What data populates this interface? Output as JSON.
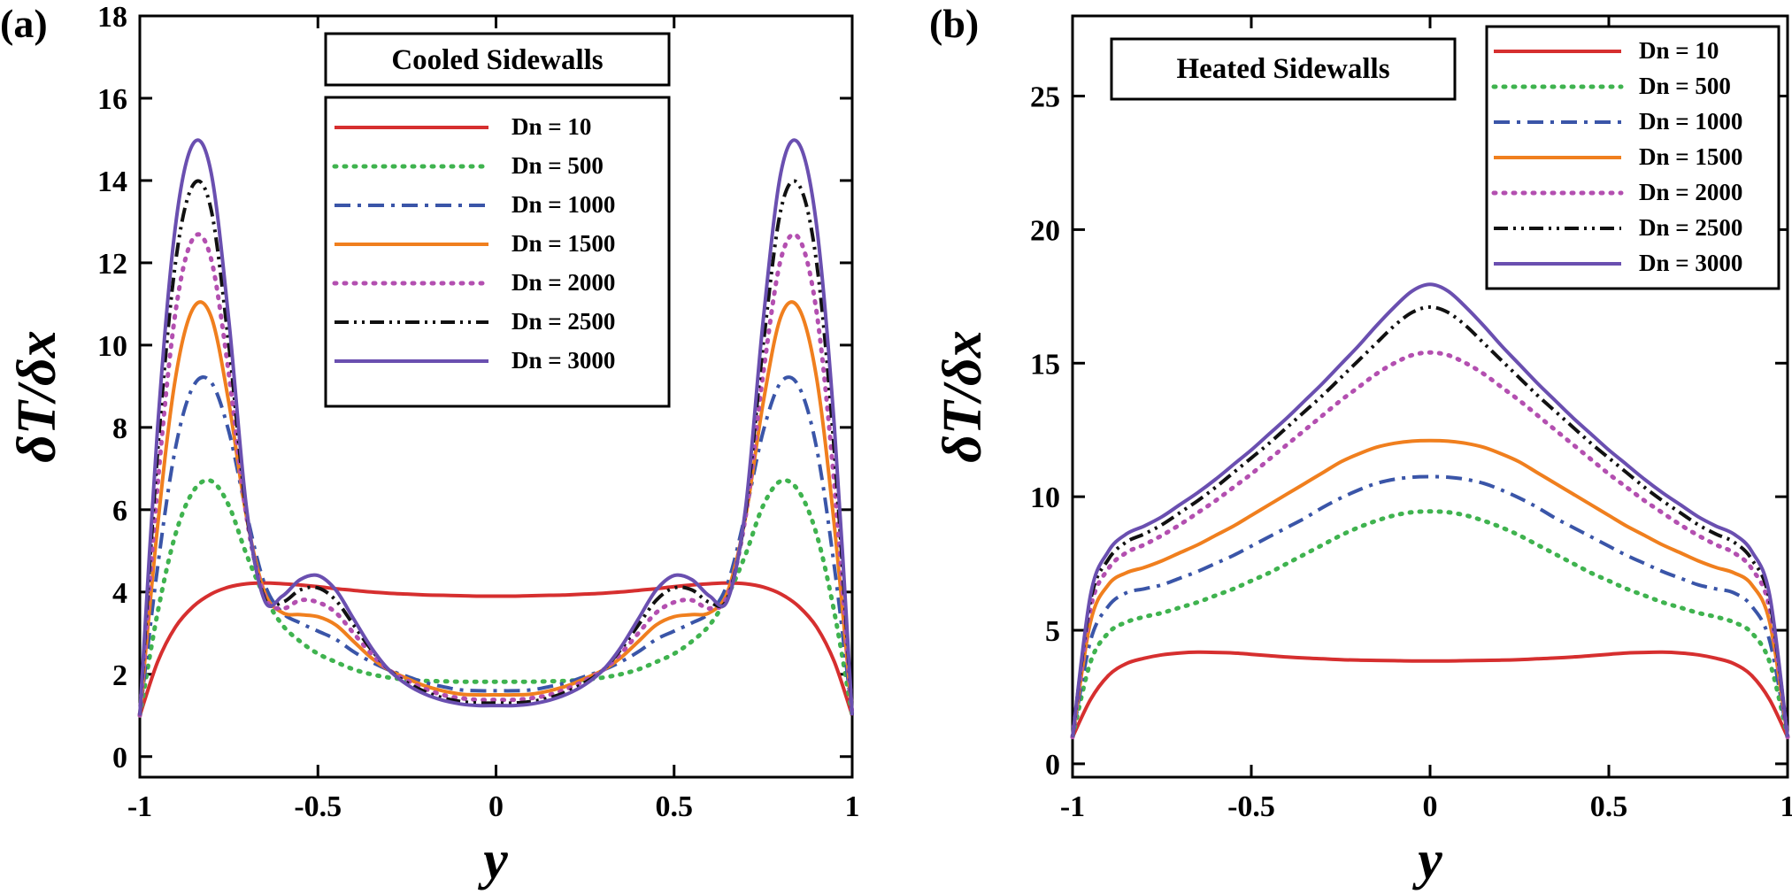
{
  "chart_data": [
    {
      "type": "line",
      "panel_label": "(a)",
      "title": "Cooled Sidewalls",
      "xlabel": "y",
      "ylabel": "δT/δx",
      "xlim": [
        -1,
        1
      ],
      "ylim": [
        -0.5,
        18
      ],
      "xticks": [
        -1,
        -0.5,
        0,
        0.5,
        1
      ],
      "xtick_labels": [
        "-1",
        "-0.5",
        "0",
        "0.5",
        "1"
      ],
      "yticks": [
        0,
        2,
        4,
        6,
        8,
        10,
        12,
        14,
        16,
        18
      ],
      "ytick_labels": [
        "0",
        "2",
        "4",
        "6",
        "8",
        "10",
        "12",
        "14",
        "16",
        "18"
      ],
      "legend_position": "upper-center",
      "x": [
        -1,
        -0.95,
        -0.9,
        -0.85,
        -0.8,
        -0.75,
        -0.7,
        -0.65,
        -0.6,
        -0.55,
        -0.5,
        -0.45,
        -0.4,
        -0.35,
        -0.3,
        -0.25,
        -0.2,
        -0.15,
        -0.1,
        -0.05,
        0,
        0.05,
        0.1,
        0.15,
        0.2,
        0.25,
        0.3,
        0.35,
        0.4,
        0.45,
        0.5,
        0.55,
        0.6,
        0.65,
        0.7,
        0.75,
        0.8,
        0.85,
        0.9,
        0.95,
        1
      ],
      "series": [
        {
          "name": "Dn = 10",
          "values": [
            1.0,
            2.3,
            3.15,
            3.65,
            3.95,
            4.12,
            4.2,
            4.22,
            4.2,
            4.17,
            4.13,
            4.08,
            4.04,
            4.0,
            3.97,
            3.95,
            3.93,
            3.92,
            3.91,
            3.9,
            3.9,
            3.9,
            3.91,
            3.92,
            3.93,
            3.95,
            3.97,
            4.0,
            4.04,
            4.08,
            4.13,
            4.17,
            4.2,
            4.22,
            4.2,
            4.12,
            3.95,
            3.65,
            3.15,
            2.3,
            1.0
          ]
        },
        {
          "name": "Dn = 500",
          "values": [
            1.0,
            3.5,
            5.4,
            6.45,
            6.7,
            6.1,
            4.9,
            3.9,
            3.2,
            2.8,
            2.5,
            2.3,
            2.12,
            2.0,
            1.92,
            1.87,
            1.84,
            1.83,
            1.82,
            1.82,
            1.82,
            1.82,
            1.82,
            1.83,
            1.84,
            1.87,
            1.92,
            2.0,
            2.12,
            2.3,
            2.5,
            2.8,
            3.2,
            3.9,
            4.9,
            6.1,
            6.7,
            6.45,
            5.4,
            3.5,
            1.0
          ]
        },
        {
          "name": "Dn = 1000",
          "values": [
            1.0,
            4.6,
            7.5,
            9.0,
            9.1,
            7.9,
            5.9,
            4.2,
            3.5,
            3.25,
            3.05,
            2.85,
            2.55,
            2.3,
            2.1,
            1.95,
            1.8,
            1.7,
            1.62,
            1.6,
            1.6,
            1.6,
            1.62,
            1.7,
            1.8,
            1.95,
            2.1,
            2.3,
            2.55,
            2.85,
            3.05,
            3.25,
            3.5,
            4.2,
            5.9,
            7.9,
            9.1,
            9.0,
            7.5,
            4.6,
            1.0
          ]
        },
        {
          "name": "Dn = 1500",
          "values": [
            1.0,
            5.6,
            9.2,
            10.9,
            10.7,
            8.6,
            5.8,
            4.0,
            3.5,
            3.45,
            3.4,
            3.2,
            2.8,
            2.4,
            2.1,
            1.9,
            1.72,
            1.6,
            1.52,
            1.5,
            1.5,
            1.5,
            1.52,
            1.6,
            1.72,
            1.9,
            2.1,
            2.4,
            2.8,
            3.2,
            3.4,
            3.45,
            3.5,
            4.0,
            5.8,
            8.6,
            10.7,
            10.9,
            9.2,
            5.6,
            1.0
          ]
        },
        {
          "name": "Dn = 2000",
          "values": [
            1.0,
            6.6,
            10.8,
            12.6,
            12.1,
            9.3,
            5.8,
            3.9,
            3.6,
            3.8,
            3.75,
            3.5,
            3.0,
            2.5,
            2.1,
            1.85,
            1.65,
            1.5,
            1.42,
            1.38,
            1.38,
            1.38,
            1.42,
            1.5,
            1.65,
            1.85,
            2.1,
            2.5,
            3.0,
            3.5,
            3.75,
            3.8,
            3.6,
            3.9,
            5.8,
            9.3,
            12.1,
            12.6,
            10.8,
            6.6,
            1.0
          ]
        },
        {
          "name": "Dn = 2500",
          "values": [
            1.0,
            7.4,
            12.0,
            13.9,
            13.3,
            10.0,
            5.9,
            3.85,
            3.75,
            4.05,
            4.1,
            3.8,
            3.2,
            2.6,
            2.1,
            1.8,
            1.58,
            1.43,
            1.34,
            1.3,
            1.3,
            1.3,
            1.34,
            1.43,
            1.58,
            1.8,
            2.1,
            2.6,
            3.2,
            3.8,
            4.1,
            4.05,
            3.75,
            3.85,
            5.9,
            10.0,
            13.3,
            13.9,
            12.0,
            7.4,
            1.0
          ]
        },
        {
          "name": "Dn = 3000",
          "values": [
            1.0,
            8.0,
            12.9,
            14.9,
            14.2,
            10.6,
            6.0,
            3.8,
            3.9,
            4.3,
            4.4,
            4.05,
            3.35,
            2.65,
            2.1,
            1.75,
            1.52,
            1.37,
            1.28,
            1.24,
            1.24,
            1.24,
            1.28,
            1.37,
            1.52,
            1.75,
            2.1,
            2.65,
            3.35,
            4.05,
            4.4,
            4.3,
            3.9,
            3.8,
            6.0,
            10.6,
            14.2,
            14.9,
            12.9,
            8.0,
            1.0
          ]
        }
      ]
    },
    {
      "type": "line",
      "panel_label": "(b)",
      "title": "Heated Sidewalls",
      "xlabel": "y",
      "ylabel": "δT/δx",
      "xlim": [
        -1,
        1
      ],
      "ylim": [
        -0.5,
        28
      ],
      "xticks": [
        -1,
        -0.5,
        0,
        0.5,
        1
      ],
      "xtick_labels": [
        "-1",
        "-0.5",
        "0",
        "0.5",
        "1"
      ],
      "yticks": [
        0,
        5,
        10,
        15,
        20,
        25
      ],
      "ytick_labels": [
        "0",
        "5",
        "10",
        "15",
        "20",
        "25"
      ],
      "legend_position": "top-right",
      "x": [
        -1,
        -0.95,
        -0.9,
        -0.85,
        -0.8,
        -0.75,
        -0.7,
        -0.65,
        -0.6,
        -0.55,
        -0.5,
        -0.45,
        -0.4,
        -0.35,
        -0.3,
        -0.25,
        -0.2,
        -0.15,
        -0.1,
        -0.05,
        0,
        0.05,
        0.1,
        0.15,
        0.2,
        0.25,
        0.3,
        0.35,
        0.4,
        0.45,
        0.5,
        0.55,
        0.6,
        0.65,
        0.7,
        0.75,
        0.8,
        0.85,
        0.9,
        0.95,
        1
      ],
      "series": [
        {
          "name": "Dn = 10",
          "values": [
            1.0,
            2.4,
            3.3,
            3.75,
            3.95,
            4.08,
            4.15,
            4.18,
            4.17,
            4.15,
            4.1,
            4.05,
            4.0,
            3.96,
            3.93,
            3.9,
            3.88,
            3.87,
            3.86,
            3.85,
            3.85,
            3.85,
            3.86,
            3.87,
            3.88,
            3.9,
            3.93,
            3.96,
            4.0,
            4.05,
            4.1,
            4.15,
            4.17,
            4.18,
            4.15,
            4.08,
            3.95,
            3.75,
            3.3,
            2.4,
            1.0
          ]
        },
        {
          "name": "Dn = 500",
          "values": [
            1.0,
            3.8,
            4.9,
            5.3,
            5.5,
            5.65,
            5.85,
            6.05,
            6.3,
            6.55,
            6.85,
            7.15,
            7.5,
            7.85,
            8.2,
            8.55,
            8.85,
            9.1,
            9.3,
            9.42,
            9.45,
            9.42,
            9.3,
            9.1,
            8.85,
            8.55,
            8.2,
            7.85,
            7.5,
            7.15,
            6.85,
            6.55,
            6.3,
            6.05,
            5.85,
            5.65,
            5.5,
            5.3,
            4.9,
            3.8,
            1.0
          ]
        },
        {
          "name": "Dn = 1000",
          "values": [
            1.0,
            4.6,
            5.9,
            6.4,
            6.55,
            6.7,
            6.95,
            7.2,
            7.5,
            7.8,
            8.15,
            8.5,
            8.85,
            9.2,
            9.6,
            9.95,
            10.25,
            10.5,
            10.65,
            10.73,
            10.75,
            10.73,
            10.65,
            10.5,
            10.25,
            9.95,
            9.6,
            9.2,
            8.85,
            8.5,
            8.15,
            7.8,
            7.5,
            7.2,
            6.95,
            6.7,
            6.55,
            6.4,
            5.9,
            4.6,
            1.0
          ]
        },
        {
          "name": "Dn = 1500",
          "values": [
            1.0,
            5.3,
            6.7,
            7.15,
            7.35,
            7.6,
            7.9,
            8.2,
            8.55,
            8.9,
            9.3,
            9.7,
            10.1,
            10.5,
            10.9,
            11.3,
            11.6,
            11.85,
            12.0,
            12.08,
            12.1,
            12.08,
            12.0,
            11.85,
            11.6,
            11.3,
            10.9,
            10.5,
            10.1,
            9.7,
            9.3,
            8.9,
            8.55,
            8.2,
            7.9,
            7.6,
            7.35,
            7.15,
            6.7,
            5.3,
            1.0
          ]
        },
        {
          "name": "Dn = 2000",
          "values": [
            1.0,
            5.8,
            7.3,
            7.9,
            8.2,
            8.55,
            8.95,
            9.4,
            9.85,
            10.35,
            10.85,
            11.4,
            11.95,
            12.5,
            13.05,
            13.6,
            14.1,
            14.6,
            15.0,
            15.3,
            15.4,
            15.3,
            15.0,
            14.6,
            14.1,
            13.6,
            13.05,
            12.5,
            11.95,
            11.4,
            10.85,
            10.35,
            9.85,
            9.4,
            8.95,
            8.55,
            8.2,
            7.9,
            7.3,
            5.8,
            1.0
          ]
        },
        {
          "name": "Dn = 2500",
          "values": [
            1.0,
            6.1,
            7.65,
            8.3,
            8.6,
            8.95,
            9.4,
            9.85,
            10.35,
            10.9,
            11.45,
            12.0,
            12.6,
            13.2,
            13.8,
            14.45,
            15.1,
            15.75,
            16.4,
            16.9,
            17.1,
            16.9,
            16.4,
            15.75,
            15.1,
            14.45,
            13.8,
            13.2,
            12.6,
            12.0,
            11.45,
            10.9,
            10.35,
            9.85,
            9.4,
            8.95,
            8.6,
            8.3,
            7.65,
            6.1,
            1.0
          ]
        },
        {
          "name": "Dn = 3000",
          "values": [
            1.0,
            6.3,
            7.95,
            8.6,
            8.9,
            9.25,
            9.7,
            10.15,
            10.65,
            11.2,
            11.75,
            12.35,
            12.95,
            13.6,
            14.25,
            14.95,
            15.65,
            16.4,
            17.1,
            17.7,
            17.95,
            17.7,
            17.1,
            16.4,
            15.65,
            14.95,
            14.25,
            13.6,
            12.95,
            12.35,
            11.75,
            11.2,
            10.65,
            10.15,
            9.7,
            9.25,
            8.9,
            8.6,
            7.95,
            6.3,
            1.0
          ]
        }
      ]
    }
  ],
  "series_styles": [
    {
      "color": "#d62f2f",
      "dash": "solid"
    },
    {
      "color": "#3fb34f",
      "dash": "dotted"
    },
    {
      "color": "#3a55a8",
      "dash": "dashdot"
    },
    {
      "color": "#f07f1e",
      "dash": "solid"
    },
    {
      "color": "#b34fb0",
      "dash": "dotted"
    },
    {
      "color": "#111111",
      "dash": "dashdotdot"
    },
    {
      "color": "#6a4fb0",
      "dash": "solid"
    }
  ]
}
